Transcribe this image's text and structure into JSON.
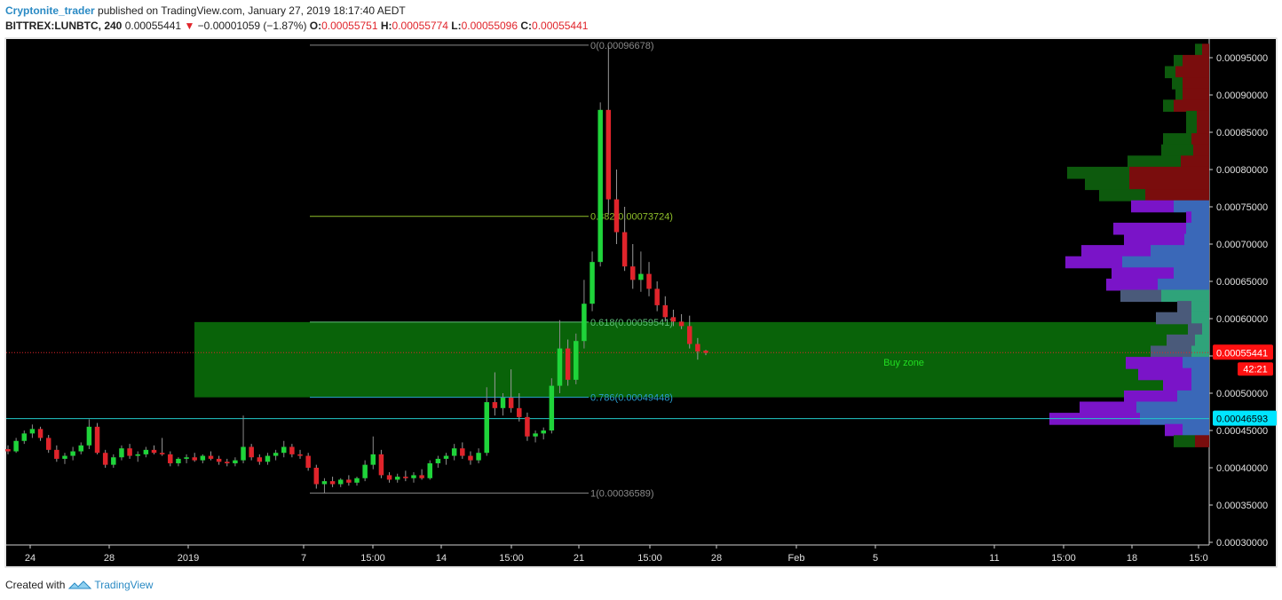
{
  "header": {
    "author": "Cryptonite_trader",
    "published": "published on TradingView.com, January 27, 2019 18:17:40 AEDT",
    "symbol": "BITTREX:LUNBTC, 240",
    "last": "0.00055441",
    "change": "−0.00001059 (−1.87%)",
    "o_label": "O:",
    "o": "0.00055751",
    "h_label": "H:",
    "h": "0.00055774",
    "l_label": "L:",
    "l": "0.00055096",
    "c_label": "C:",
    "c": "0.00055441"
  },
  "footer": {
    "created": "Created with",
    "brand": "TradingView"
  },
  "colors": {
    "up": "#1fd43a",
    "down": "#e0242b",
    "fib": "#8a8a8a",
    "zone": "#0a6b0a",
    "zone_text": "#22dd22",
    "hline": "#22c9c9",
    "price_label": "#ff1111",
    "cyan_label": "#00e5ff"
  },
  "chart_data": {
    "type": "candlestick",
    "y_ticks": [
      "0.00030000",
      "0.00035000",
      "0.00040000",
      "0.00045000",
      "0.00050000",
      "0.00055000",
      "0.00060000",
      "0.00065000",
      "0.00070000",
      "0.00075000",
      "0.00080000",
      "0.00085000",
      "0.00090000",
      "0.00095000"
    ],
    "x_ticks": [
      "24",
      "28",
      "2019",
      "7",
      "15:00",
      "14",
      "15:00",
      "21",
      "15:00",
      "28",
      "Feb",
      "5",
      "11",
      "15:00",
      "18",
      "15:0"
    ],
    "ylim": [
      0.0003,
      0.00097
    ],
    "fib_levels": [
      {
        "label": "0(0.00096678)",
        "value": 0.00096678
      },
      {
        "label": "0.382(0.00073724)",
        "value": 0.00073724
      },
      {
        "label": "0.618(0.00059541)",
        "value": 0.00059541
      },
      {
        "label": "0.786(0.00049448)",
        "value": 0.00049448
      },
      {
        "label": "1(0.00036589)",
        "value": 0.00036589
      }
    ],
    "zone": {
      "label": "Buy zone",
      "top": 0.00059541,
      "bottom": 0.00049448
    },
    "current_price": {
      "label": "0.00055441",
      "value": 0.00055441,
      "timer": "42:21"
    },
    "support_line": {
      "label": "0.00046593",
      "value": 0.00046593
    },
    "candles": [
      {
        "o": 0.000425,
        "h": 0.00043,
        "l": 0.000418,
        "c": 0.000422
      },
      {
        "o": 0.000422,
        "h": 0.00044,
        "l": 0.00042,
        "c": 0.000436
      },
      {
        "o": 0.000436,
        "h": 0.00045,
        "l": 0.000432,
        "c": 0.000446
      },
      {
        "o": 0.000446,
        "h": 0.000458,
        "l": 0.00044,
        "c": 0.000452
      },
      {
        "o": 0.000452,
        "h": 0.000455,
        "l": 0.000436,
        "c": 0.00044
      },
      {
        "o": 0.00044,
        "h": 0.000444,
        "l": 0.00042,
        "c": 0.000424
      },
      {
        "o": 0.000424,
        "h": 0.00043,
        "l": 0.000408,
        "c": 0.000412
      },
      {
        "o": 0.000412,
        "h": 0.00042,
        "l": 0.000405,
        "c": 0.000416
      },
      {
        "o": 0.000416,
        "h": 0.000428,
        "l": 0.00041,
        "c": 0.000422
      },
      {
        "o": 0.000422,
        "h": 0.000434,
        "l": 0.000418,
        "c": 0.00043
      },
      {
        "o": 0.00043,
        "h": 0.000465,
        "l": 0.000425,
        "c": 0.000455
      },
      {
        "o": 0.000455,
        "h": 0.00046,
        "l": 0.000418,
        "c": 0.00042
      },
      {
        "o": 0.00042,
        "h": 0.000424,
        "l": 0.0004,
        "c": 0.000404
      },
      {
        "o": 0.000404,
        "h": 0.000418,
        "l": 0.0004,
        "c": 0.000414
      },
      {
        "o": 0.000414,
        "h": 0.00043,
        "l": 0.00041,
        "c": 0.000426
      },
      {
        "o": 0.000426,
        "h": 0.000432,
        "l": 0.000412,
        "c": 0.000416
      },
      {
        "o": 0.000416,
        "h": 0.000422,
        "l": 0.000408,
        "c": 0.000418
      },
      {
        "o": 0.000418,
        "h": 0.000428,
        "l": 0.000414,
        "c": 0.000424
      },
      {
        "o": 0.000424,
        "h": 0.00043,
        "l": 0.000418,
        "c": 0.00042
      },
      {
        "o": 0.00042,
        "h": 0.00044,
        "l": 0.000416,
        "c": 0.000418
      },
      {
        "o": 0.000418,
        "h": 0.000422,
        "l": 0.000402,
        "c": 0.000406
      },
      {
        "o": 0.000406,
        "h": 0.000414,
        "l": 0.000402,
        "c": 0.000412
      },
      {
        "o": 0.000412,
        "h": 0.000418,
        "l": 0.000406,
        "c": 0.000414
      },
      {
        "o": 0.000414,
        "h": 0.00042,
        "l": 0.000408,
        "c": 0.00041
      },
      {
        "o": 0.00041,
        "h": 0.000418,
        "l": 0.000406,
        "c": 0.000416
      },
      {
        "o": 0.000416,
        "h": 0.000422,
        "l": 0.00041,
        "c": 0.000412
      },
      {
        "o": 0.000412,
        "h": 0.000416,
        "l": 0.000404,
        "c": 0.000408
      },
      {
        "o": 0.000408,
        "h": 0.000412,
        "l": 0.000402,
        "c": 0.000406
      },
      {
        "o": 0.000406,
        "h": 0.000414,
        "l": 0.000402,
        "c": 0.00041
      },
      {
        "o": 0.00041,
        "h": 0.00047,
        "l": 0.000406,
        "c": 0.000428
      },
      {
        "o": 0.000428,
        "h": 0.000432,
        "l": 0.00041,
        "c": 0.000414
      },
      {
        "o": 0.000414,
        "h": 0.000418,
        "l": 0.000404,
        "c": 0.000408
      },
      {
        "o": 0.000408,
        "h": 0.00042,
        "l": 0.000404,
        "c": 0.000416
      },
      {
        "o": 0.000416,
        "h": 0.000424,
        "l": 0.00041,
        "c": 0.00042
      },
      {
        "o": 0.00042,
        "h": 0.000436,
        "l": 0.000414,
        "c": 0.000428
      },
      {
        "o": 0.000428,
        "h": 0.000432,
        "l": 0.000414,
        "c": 0.000418
      },
      {
        "o": 0.000418,
        "h": 0.000424,
        "l": 0.000412,
        "c": 0.000416
      },
      {
        "o": 0.000416,
        "h": 0.00042,
        "l": 0.000396,
        "c": 0.0004
      },
      {
        "o": 0.0004,
        "h": 0.000404,
        "l": 0.000372,
        "c": 0.000378
      },
      {
        "o": 0.000378,
        "h": 0.000386,
        "l": 0.000366,
        "c": 0.000382
      },
      {
        "o": 0.000382,
        "h": 0.000388,
        "l": 0.000374,
        "c": 0.000378
      },
      {
        "o": 0.000378,
        "h": 0.000386,
        "l": 0.000374,
        "c": 0.000384
      },
      {
        "o": 0.000384,
        "h": 0.00039,
        "l": 0.000376,
        "c": 0.00038
      },
      {
        "o": 0.00038,
        "h": 0.000388,
        "l": 0.000376,
        "c": 0.000386
      },
      {
        "o": 0.000386,
        "h": 0.00041,
        "l": 0.000382,
        "c": 0.000404
      },
      {
        "o": 0.000404,
        "h": 0.000442,
        "l": 0.000398,
        "c": 0.000418
      },
      {
        "o": 0.000418,
        "h": 0.000424,
        "l": 0.000386,
        "c": 0.00039
      },
      {
        "o": 0.00039,
        "h": 0.000394,
        "l": 0.00038,
        "c": 0.000384
      },
      {
        "o": 0.000384,
        "h": 0.000392,
        "l": 0.00038,
        "c": 0.000388
      },
      {
        "o": 0.000388,
        "h": 0.000396,
        "l": 0.000382,
        "c": 0.000386
      },
      {
        "o": 0.000386,
        "h": 0.000394,
        "l": 0.00038,
        "c": 0.00039
      },
      {
        "o": 0.00039,
        "h": 0.000398,
        "l": 0.000384,
        "c": 0.000386
      },
      {
        "o": 0.000386,
        "h": 0.00041,
        "l": 0.000384,
        "c": 0.000406
      },
      {
        "o": 0.000406,
        "h": 0.000416,
        "l": 0.0004,
        "c": 0.000412
      },
      {
        "o": 0.000412,
        "h": 0.00042,
        "l": 0.000404,
        "c": 0.000416
      },
      {
        "o": 0.000416,
        "h": 0.000432,
        "l": 0.00041,
        "c": 0.000426
      },
      {
        "o": 0.000426,
        "h": 0.000434,
        "l": 0.000412,
        "c": 0.000416
      },
      {
        "o": 0.000416,
        "h": 0.000422,
        "l": 0.000404,
        "c": 0.00041
      },
      {
        "o": 0.00041,
        "h": 0.000426,
        "l": 0.000406,
        "c": 0.00042
      },
      {
        "o": 0.00042,
        "h": 0.000508,
        "l": 0.000416,
        "c": 0.000488
      },
      {
        "o": 0.000488,
        "h": 0.000528,
        "l": 0.00047,
        "c": 0.00048
      },
      {
        "o": 0.00048,
        "h": 0.0005,
        "l": 0.00047,
        "c": 0.000494
      },
      {
        "o": 0.000494,
        "h": 0.000532,
        "l": 0.000474,
        "c": 0.00048
      },
      {
        "o": 0.00048,
        "h": 0.0005,
        "l": 0.000462,
        "c": 0.000468
      },
      {
        "o": 0.000468,
        "h": 0.000474,
        "l": 0.000436,
        "c": 0.000442
      },
      {
        "o": 0.000442,
        "h": 0.00045,
        "l": 0.000434,
        "c": 0.000446
      },
      {
        "o": 0.000446,
        "h": 0.000454,
        "l": 0.000438,
        "c": 0.00045
      },
      {
        "o": 0.00045,
        "h": 0.00052,
        "l": 0.000446,
        "c": 0.00051
      },
      {
        "o": 0.00051,
        "h": 0.000598,
        "l": 0.0005,
        "c": 0.00056
      },
      {
        "o": 0.00056,
        "h": 0.000572,
        "l": 0.00051,
        "c": 0.000518
      },
      {
        "o": 0.000518,
        "h": 0.00058,
        "l": 0.000512,
        "c": 0.00057
      },
      {
        "o": 0.00057,
        "h": 0.000652,
        "l": 0.00056,
        "c": 0.00062
      },
      {
        "o": 0.00062,
        "h": 0.00069,
        "l": 0.00061,
        "c": 0.000676
      },
      {
        "o": 0.000676,
        "h": 0.00089,
        "l": 0.00067,
        "c": 0.00088
      },
      {
        "o": 0.00088,
        "h": 0.000966,
        "l": 0.00074,
        "c": 0.00076
      },
      {
        "o": 0.00076,
        "h": 0.0008,
        "l": 0.0007,
        "c": 0.000716
      },
      {
        "o": 0.000716,
        "h": 0.00075,
        "l": 0.000664,
        "c": 0.00067
      },
      {
        "o": 0.00067,
        "h": 0.0007,
        "l": 0.00064,
        "c": 0.000652
      },
      {
        "o": 0.000652,
        "h": 0.00069,
        "l": 0.000636,
        "c": 0.00066
      },
      {
        "o": 0.00066,
        "h": 0.000676,
        "l": 0.00063,
        "c": 0.00064
      },
      {
        "o": 0.00064,
        "h": 0.00065,
        "l": 0.00061,
        "c": 0.000618
      },
      {
        "o": 0.000618,
        "h": 0.00063,
        "l": 0.000596,
        "c": 0.000602
      },
      {
        "o": 0.000602,
        "h": 0.000612,
        "l": 0.00059,
        "c": 0.000596
      },
      {
        "o": 0.000596,
        "h": 0.000606,
        "l": 0.000586,
        "c": 0.00059
      },
      {
        "o": 0.00059,
        "h": 0.000604,
        "l": 0.00056,
        "c": 0.000566
      },
      {
        "o": 0.000566,
        "h": 0.000574,
        "l": 0.000545,
        "c": 0.000556
      },
      {
        "o": 0.000557,
        "h": 0.000558,
        "l": 0.000551,
        "c": 0.000554
      }
    ],
    "volume_profile": {
      "comment": "price rows from top to bottom",
      "rows": [
        {
          "price": 0.00096,
          "sell": 8e-07,
          "buy": 8e-07,
          "zone": "upper"
        },
        {
          "price": 0.000945,
          "sell": 1e-06,
          "buy": 3e-06,
          "zone": "upper"
        },
        {
          "price": 0.00093,
          "sell": 1.2e-06,
          "buy": 3.8e-06,
          "zone": "upper"
        },
        {
          "price": 0.000915,
          "sell": 1.2e-06,
          "buy": 3e-06,
          "zone": "upper"
        },
        {
          "price": 0.0009,
          "sell": 8e-07,
          "buy": 3e-06,
          "zone": "upper"
        },
        {
          "price": 0.000885,
          "sell": 1.2e-06,
          "buy": 4e-06,
          "zone": "upper"
        },
        {
          "price": 0.00087,
          "sell": 1.2e-06,
          "buy": 1.4e-06,
          "zone": "upper"
        },
        {
          "price": 0.000855,
          "sell": 1.2e-06,
          "buy": 1.4e-06,
          "zone": "upper"
        },
        {
          "price": 0.00084,
          "sell": 3.2e-06,
          "buy": 2e-06,
          "zone": "upper"
        },
        {
          "price": 0.000825,
          "sell": 3.6e-06,
          "buy": 1.8e-06,
          "zone": "upper"
        },
        {
          "price": 0.00081,
          "sell": 6e-06,
          "buy": 3.2e-06,
          "zone": "upper"
        },
        {
          "price": 0.000795,
          "sell": 7e-06,
          "buy": 9e-06,
          "zone": "upper"
        },
        {
          "price": 0.00078,
          "sell": 5e-06,
          "buy": 9e-06,
          "zone": "upper"
        },
        {
          "price": 0.000765,
          "sell": 5.2e-06,
          "buy": 7.2e-06,
          "zone": "upper"
        },
        {
          "price": 0.00075,
          "sell": 4.8e-06,
          "buy": 4e-06,
          "zone": "mid"
        },
        {
          "price": 0.000735,
          "sell": 6e-07,
          "buy": 2e-06,
          "zone": "mid"
        },
        {
          "price": 0.00072,
          "sell": 8.2e-06,
          "buy": 2.6e-06,
          "zone": "mid"
        },
        {
          "price": 0.000705,
          "sell": 6.8e-06,
          "buy": 2.8e-06,
          "zone": "mid"
        },
        {
          "price": 0.00069,
          "sell": 7.8e-06,
          "buy": 6.6e-06,
          "zone": "mid"
        },
        {
          "price": 0.000675,
          "sell": 6.4e-06,
          "buy": 9.8e-06,
          "zone": "mid"
        },
        {
          "price": 0.00066,
          "sell": 7e-06,
          "buy": 4e-06,
          "zone": "mid"
        },
        {
          "price": 0.000645,
          "sell": 5.8e-06,
          "buy": 5.8e-06,
          "zone": "mid"
        },
        {
          "price": 0.00063,
          "sell": 4.6e-06,
          "buy": 5.4e-06,
          "zone": "lowzone"
        },
        {
          "price": 0.000615,
          "sell": 1.6e-06,
          "buy": 2e-06,
          "zone": "lowzone"
        },
        {
          "price": 0.0006,
          "sell": 4e-06,
          "buy": 2e-06,
          "zone": "lowzone"
        },
        {
          "price": 0.000585,
          "sell": 1.6e-06,
          "buy": 8e-07,
          "zone": "lowzone"
        },
        {
          "price": 0.00057,
          "sell": 3.2e-06,
          "buy": 1.6e-06,
          "zone": "lowzone"
        },
        {
          "price": 0.000555,
          "sell": 4.6e-06,
          "buy": 2e-06,
          "zone": "lowzone"
        },
        {
          "price": 0.00054,
          "sell": 6.4e-06,
          "buy": 3e-06,
          "zone": "mid"
        },
        {
          "price": 0.000525,
          "sell": 6e-06,
          "buy": 2e-06,
          "zone": "mid"
        },
        {
          "price": 0.00051,
          "sell": 3.2e-06,
          "buy": 2e-06,
          "zone": "mid"
        },
        {
          "price": 0.000495,
          "sell": 6e-06,
          "buy": 3.6e-06,
          "zone": "mid"
        },
        {
          "price": 0.00048,
          "sell": 6.4e-06,
          "buy": 8.2e-06,
          "zone": "mid"
        },
        {
          "price": 0.000465,
          "sell": 1.02e-05,
          "buy": 7.8e-06,
          "zone": "mid"
        },
        {
          "price": 0.00045,
          "sell": 2e-06,
          "buy": 3e-06,
          "zone": "mid"
        },
        {
          "price": 0.000435,
          "sell": 2.4e-06,
          "buy": 1.6e-06,
          "zone": "upper"
        }
      ]
    }
  }
}
